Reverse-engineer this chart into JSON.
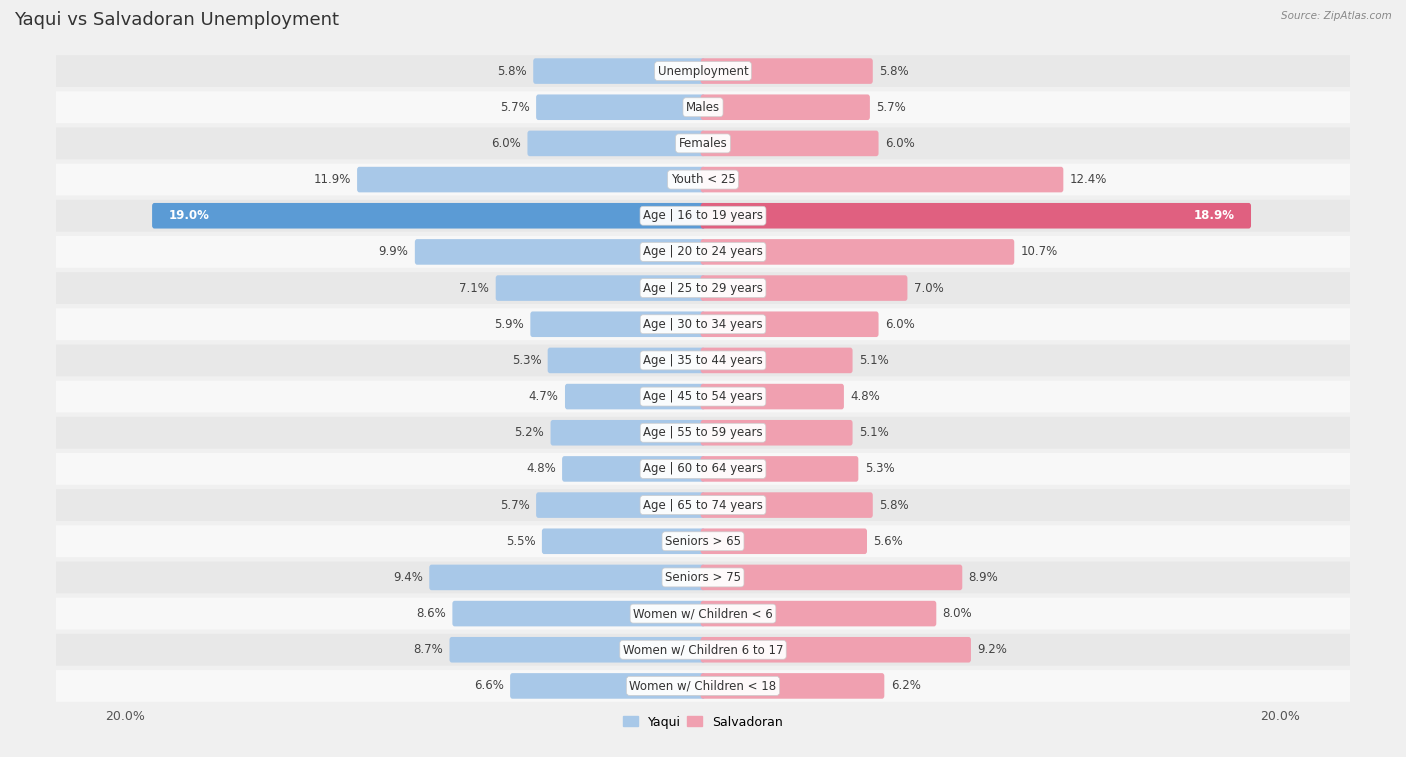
{
  "title": "Yaqui vs Salvadoran Unemployment",
  "source": "Source: ZipAtlas.com",
  "categories": [
    "Unemployment",
    "Males",
    "Females",
    "Youth < 25",
    "Age | 16 to 19 years",
    "Age | 20 to 24 years",
    "Age | 25 to 29 years",
    "Age | 30 to 34 years",
    "Age | 35 to 44 years",
    "Age | 45 to 54 years",
    "Age | 55 to 59 years",
    "Age | 60 to 64 years",
    "Age | 65 to 74 years",
    "Seniors > 65",
    "Seniors > 75",
    "Women w/ Children < 6",
    "Women w/ Children 6 to 17",
    "Women w/ Children < 18"
  ],
  "yaqui": [
    5.8,
    5.7,
    6.0,
    11.9,
    19.0,
    9.9,
    7.1,
    5.9,
    5.3,
    4.7,
    5.2,
    4.8,
    5.7,
    5.5,
    9.4,
    8.6,
    8.7,
    6.6
  ],
  "salvadoran": [
    5.8,
    5.7,
    6.0,
    12.4,
    18.9,
    10.7,
    7.0,
    6.0,
    5.1,
    4.8,
    5.1,
    5.3,
    5.8,
    5.6,
    8.9,
    8.0,
    9.2,
    6.2
  ],
  "yaqui_color": "#a8c8e8",
  "salvadoran_color": "#f0a0b0",
  "yaqui_highlight_color": "#5b9bd5",
  "salvadoran_highlight_color": "#e06080",
  "background_color": "#f0f0f0",
  "row_bg_light": "#e8e8e8",
  "row_bg_dark": "#f8f8f8",
  "xlim": 20.0,
  "x_tick_label": "20.0%",
  "legend_yaqui": "Yaqui",
  "legend_salvadoran": "Salvadoran",
  "title_fontsize": 13,
  "label_fontsize": 8.5,
  "value_fontsize": 8.5
}
